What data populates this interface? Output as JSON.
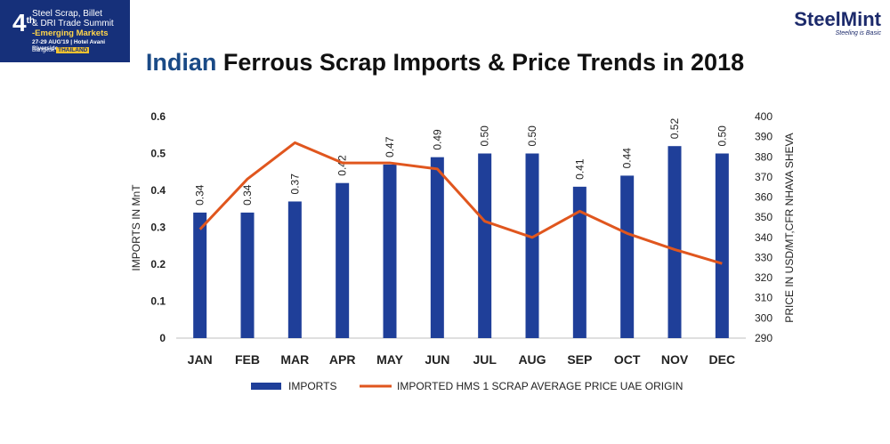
{
  "badge": {
    "number": "4",
    "number_sup": "th",
    "line1": "Steel Scrap, Billet",
    "line2": "& DRI Trade Summit",
    "line3": "-Emerging Markets",
    "line4": "27-29 AUG'19 | Hotel Avani Riverside",
    "line5_city": "Bangkok",
    "line5_country": "THAILAND"
  },
  "logo": {
    "name_part1": "Steel",
    "name_part2": "Mint",
    "tagline": "Steeling is Basic"
  },
  "title": {
    "accent": "Indian",
    "rest": " Ferrous Scrap Imports & Price Trends in 2018"
  },
  "colors": {
    "bar": "#1f3f99",
    "line": "#e0561e",
    "title_accent": "#1a4a86"
  },
  "chart_data": {
    "type": "bar",
    "categories": [
      "JAN",
      "FEB",
      "MAR",
      "APR",
      "MAY",
      "JUN",
      "JUL",
      "AUG",
      "SEP",
      "OCT",
      "NOV",
      "DEC"
    ],
    "series": [
      {
        "name": "IMPORTS",
        "type": "bar",
        "axis": "left",
        "values": [
          0.34,
          0.34,
          0.37,
          0.42,
          0.47,
          0.49,
          0.5,
          0.5,
          0.41,
          0.44,
          0.52,
          0.5
        ],
        "labels": [
          "0.34",
          "0.34",
          "0.37",
          "0.42",
          "0.47",
          "0.49",
          "0.50",
          "0.50",
          "0.41",
          "0.44",
          "0.52",
          "0.50"
        ]
      },
      {
        "name": "IMPORTED HMS 1 SCRAP AVERAGE PRICE UAE ORIGIN",
        "type": "line",
        "axis": "right",
        "values": [
          344,
          369,
          387,
          377,
          377,
          374,
          348,
          340,
          353,
          342,
          334,
          327
        ]
      }
    ],
    "ylabel": "IMPORTS IN MnT",
    "y2label": "PRICE IN USD/MT,CFR NHAVA SHEVA",
    "ylim": [
      0,
      0.6
    ],
    "y2lim": [
      290,
      400
    ],
    "yticks": [
      "0",
      "0.1",
      "0.2",
      "0.3",
      "0.4",
      "0.5",
      "0.6"
    ],
    "y2ticks": [
      "290",
      "300",
      "310",
      "320",
      "330",
      "340",
      "350",
      "360",
      "370",
      "380",
      "390",
      "400"
    ],
    "grid": false,
    "legend": "bottom"
  }
}
